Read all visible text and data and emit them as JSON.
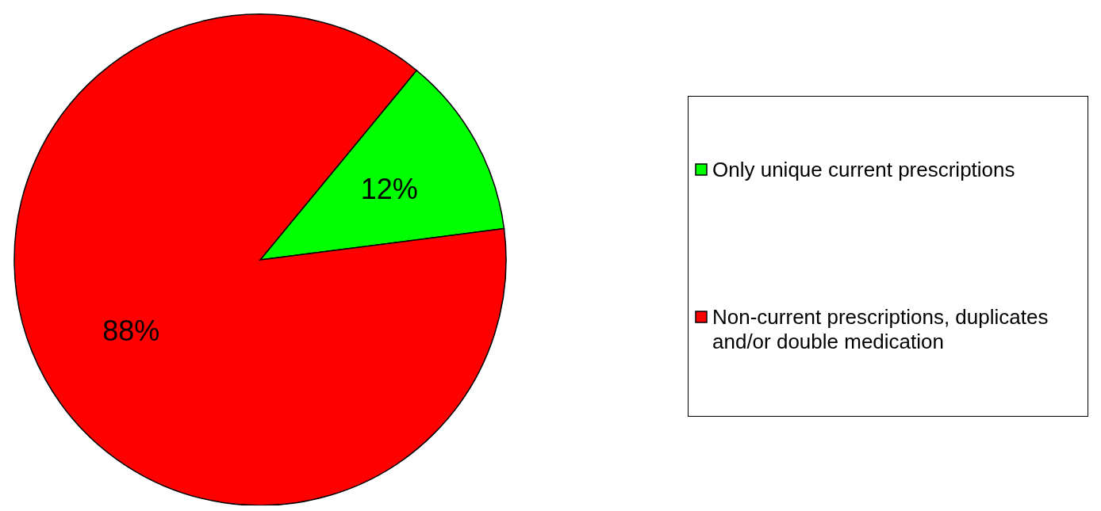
{
  "chart_data": {
    "type": "pie",
    "categories": [
      "Only unique current prescriptions",
      "Non-current prescriptions, duplicates and/or double medication"
    ],
    "values": [
      12,
      88
    ],
    "colors": [
      "#00ff00",
      "#ff0000"
    ],
    "value_labels": [
      "12%",
      "88%"
    ],
    "legend": "right"
  }
}
